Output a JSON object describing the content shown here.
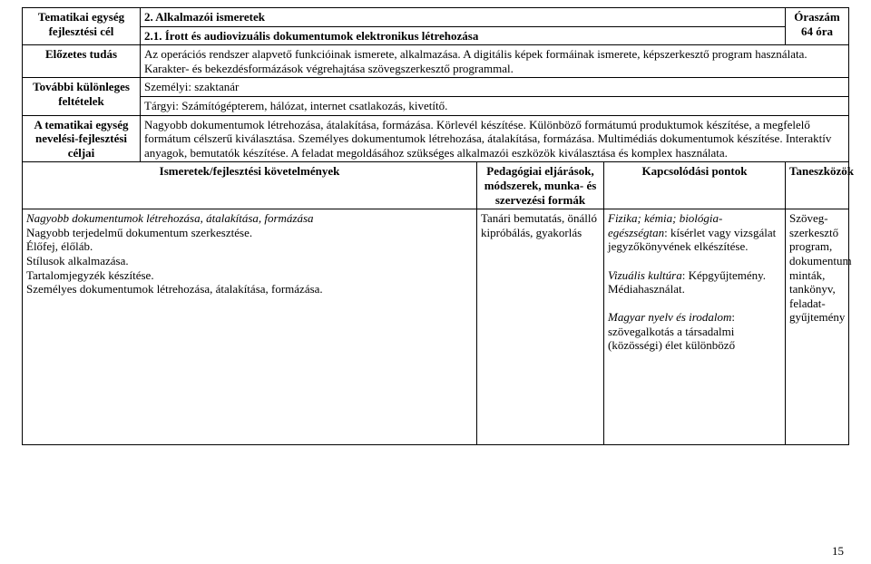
{
  "header": {
    "left_label_line1": "Tematikai egység",
    "left_label_line2": "fejlesztési cél",
    "title_main": "2. Alkalmazói ismeretek",
    "title_sub": "2.1. Írott és audiovizuális dokumentumok elektronikus létrehozása",
    "ora_label": "Óraszám",
    "ora_value": "64 óra"
  },
  "rows": {
    "elozetes": {
      "label": "Előzetes tudás",
      "text": "Az operációs rendszer alapvető funkcióinak ismerete, alkalmazása. A digitális képek formáinak ismerete, képszerkesztő program használata. Karakter- és bekezdésformázások végrehajtása szövegszerkesztő programmal."
    },
    "tovabbi": {
      "label": "További különleges feltételek",
      "line1": "Személyi: szaktanár",
      "line2": "Tárgyi: Számítógépterem, hálózat, internet csatlakozás, kivetítő."
    },
    "tematikai": {
      "label": "A tematikai egység nevelési-fejlesztési céljai",
      "text": "Nagyobb dokumentumok létrehozása, átalakítása, formázása. Körlevél készítése. Különböző formátumú produktumok készítése, a megfelelő formátum célszerű kiválasztása. Személyes dokumentumok létrehozása, átalakítása, formázása. Multimédiás dokumentumok készítése. Interaktív anyagok, bemutatók készítése. A feladat megoldásához szükséges alkalmazói eszközök kiválasztása és komplex használata."
    }
  },
  "subheader": {
    "ismeretek": "Ismeretek/fejlesztési követelmények",
    "pedagogiai": "Pedagógiai eljárások, módszerek, munka- és szervezési formák",
    "kapcsolodasi": "Kapcsolódási pontok",
    "taneszkozok": "Taneszközök"
  },
  "body": {
    "ismeretek": {
      "heading": "Nagyobb dokumentumok létrehozása, átalakítása, formázása",
      "lines": "Nagyobb terjedelmű dokumentum szerkesztése.\nÉlőfej, élőláb.\nStílusok alkalmazása.\nTartalomjegyzék készítése.\nSzemélyes dokumentumok létrehozása, átalakítása, formázása."
    },
    "pedagogiai": "Tanári bemutatás, önálló kipróbálás, gyakorlás",
    "kapcsolodasi": {
      "block1_label": "Fizika; kémia; biológia-egészségtan",
      "block1_rest": ": kísérlet vagy vizsgálat jegyzőkönyvének elkészítése.",
      "block2_label": "Vizuális kultúra",
      "block2_rest": ": Képgyűjtemény. Médiahasználat.",
      "block3_label": "Magyar nyelv és irodalom",
      "block3_rest": ": szövegalkotás a társadalmi (közösségi) élet különböző"
    },
    "taneszkozok": "Szöveg-\nszerkesztő program, dokumentum minták, tankönyv, feladat-\ngyűjtemény"
  },
  "page_number": "15"
}
